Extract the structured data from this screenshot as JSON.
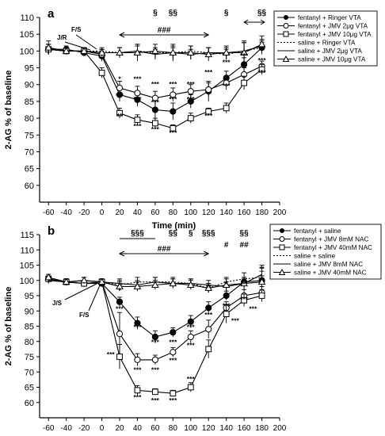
{
  "chart_data": [
    {
      "panel": "a",
      "type": "line",
      "xlabel": "Time (min)",
      "ylabel": "2-AG % of baseline",
      "xlim": [
        -70,
        200
      ],
      "ylim": [
        55,
        110
      ],
      "xticks": [
        -60,
        -40,
        -20,
        0,
        20,
        40,
        60,
        80,
        100,
        120,
        140,
        160,
        180,
        200
      ],
      "yticks": [
        60,
        65,
        70,
        75,
        80,
        85,
        90,
        95,
        100,
        105,
        110
      ],
      "x": [
        -60,
        -40,
        -20,
        0,
        20,
        40,
        60,
        80,
        100,
        120,
        140,
        160,
        180
      ],
      "series": [
        {
          "name": "fentanyl + Ringer VTA",
          "marker": "filled-circle",
          "line": "solid",
          "values": [
            100.5,
            100.5,
            99.5,
            98.5,
            87,
            85.5,
            82.5,
            82,
            85,
            88,
            92,
            96,
            101
          ],
          "err": [
            1.5,
            1,
            1,
            1.5,
            2,
            2,
            3,
            2.5,
            2,
            3,
            2,
            2,
            1.5
          ]
        },
        {
          "name": "fentanyl + JMV 2μg VTA",
          "marker": "open-circle",
          "line": "solid",
          "values": [
            100.5,
            100,
            100,
            99,
            89,
            87.5,
            86,
            87,
            88,
            88.5,
            90.5,
            93,
            95.5
          ],
          "err": [
            1.5,
            1,
            1,
            1.5,
            2,
            2,
            2,
            2,
            2,
            2,
            2,
            2,
            1.5
          ]
        },
        {
          "name": "fentanyl + JMV 10μg VTA",
          "marker": "open-square",
          "line": "solid",
          "values": [
            100.5,
            100,
            100,
            93.5,
            81.5,
            79.5,
            78.5,
            77,
            80,
            82,
            83,
            90.5,
            94.5
          ],
          "err": [
            1.5,
            1,
            1,
            1.5,
            1.5,
            1.5,
            1.5,
            1,
            1.5,
            1,
            1.5,
            2,
            1.5
          ]
        },
        {
          "name": "saline + Ringer VTA",
          "marker": "none",
          "line": "dotted",
          "values": [
            100.5,
            100,
            100,
            100,
            99.5,
            100,
            99.5,
            99.5,
            100,
            99.5,
            99,
            100,
            101
          ],
          "err": [
            1.5,
            1,
            1,
            1,
            1.5,
            2,
            1.5,
            2,
            1.5,
            1.5,
            1.5,
            3,
            2
          ]
        },
        {
          "name": "saline + JMV 2μg VTA",
          "marker": "none",
          "line": "solid",
          "values": [
            100.5,
            100,
            100,
            99.5,
            99.5,
            100,
            99,
            99.5,
            99,
            99.5,
            99.5,
            100,
            101.5
          ],
          "err": [
            1.5,
            1,
            1,
            1,
            1.5,
            1.5,
            1.5,
            1.5,
            1.5,
            1.5,
            1.5,
            2.5,
            2
          ]
        },
        {
          "name": "saline + JMV 10μg VTA",
          "marker": "open-triangle",
          "line": "solid",
          "values": [
            101,
            100,
            100,
            99.5,
            99.5,
            99.5,
            100,
            99.5,
            99.5,
            99,
            99.5,
            99.5,
            102
          ],
          "err": [
            2,
            1,
            1,
            1,
            1.5,
            2.5,
            2,
            2.5,
            2,
            2,
            2,
            3,
            2.5
          ]
        }
      ],
      "annotations": {
        "injection_labels": [
          "J/R",
          "F/S"
        ],
        "top_markers": [
          {
            "text": "§",
            "x": 60
          },
          {
            "text": "§§",
            "x": 80
          },
          {
            "text": "§",
            "x": 140
          },
          {
            "text": "§§",
            "x": 180
          }
        ],
        "range_label": "###",
        "asterisks": "***",
        "double_asterisks": "**"
      }
    },
    {
      "panel": "b",
      "type": "line",
      "xlabel": "Time (min)",
      "ylabel": "2-AG % of baseline",
      "xlim": [
        -70,
        200
      ],
      "ylim": [
        55,
        115
      ],
      "xticks": [
        -60,
        -40,
        -20,
        0,
        20,
        40,
        60,
        80,
        100,
        120,
        140,
        160,
        180,
        200
      ],
      "yticks": [
        60,
        65,
        70,
        75,
        80,
        85,
        90,
        95,
        100,
        105,
        110,
        115
      ],
      "x": [
        -60,
        -40,
        -20,
        0,
        20,
        40,
        60,
        80,
        100,
        120,
        140,
        160,
        180
      ],
      "series": [
        {
          "name": "fentanyl + saline",
          "marker": "filled-circle",
          "line": "solid",
          "values": [
            100.5,
            99.5,
            99,
            99,
            93,
            86,
            81.5,
            83,
            86.5,
            91,
            95,
            99.5,
            100
          ],
          "err": [
            1,
            1,
            1,
            1,
            1.5,
            2,
            2,
            1.5,
            2,
            2,
            1.5,
            1.5,
            1.5
          ]
        },
        {
          "name": "fentanyl + JMV 8mM NAC",
          "marker": "open-circle",
          "line": "solid",
          "values": [
            100.5,
            99.5,
            99,
            99.5,
            82.5,
            74,
            74,
            76.5,
            81.5,
            84,
            91,
            95,
            96
          ],
          "err": [
            1,
            1,
            1,
            1,
            7,
            2,
            1.5,
            1.5,
            2,
            3,
            2,
            2,
            2
          ]
        },
        {
          "name": "fentanyl + JMV 40mM NAC",
          "marker": "open-square",
          "line": "solid",
          "values": [
            100.5,
            99.5,
            99,
            99.5,
            75,
            64,
            63.5,
            63,
            65,
            77.5,
            89,
            93.5,
            95
          ],
          "err": [
            1,
            1,
            1,
            1,
            4,
            1.5,
            1,
            1,
            1.5,
            3,
            3,
            2,
            2
          ]
        },
        {
          "name": "saline + saline",
          "marker": "none",
          "line": "dotted",
          "values": [
            100,
            99.5,
            100,
            99.5,
            98.5,
            99.5,
            99.5,
            99.5,
            99,
            97.5,
            99.5,
            100.5,
            101
          ],
          "err": [
            1,
            1,
            1,
            1,
            1.5,
            1.5,
            1.5,
            1.5,
            1.5,
            1.5,
            1.5,
            2,
            2
          ]
        },
        {
          "name": "saline + JMV 8mM NAC",
          "marker": "none",
          "line": "solid",
          "values": [
            100,
            99.5,
            100,
            99.5,
            99,
            98.5,
            99.5,
            99,
            99,
            98.5,
            98,
            99,
            102
          ],
          "err": [
            1,
            1,
            1,
            1,
            1.5,
            1.5,
            1.5,
            1.5,
            1.5,
            1.5,
            1.5,
            1.5,
            3
          ]
        },
        {
          "name": "saline + JMV 40mM NAC",
          "marker": "open-triangle",
          "line": "solid",
          "values": [
            101,
            99.5,
            100,
            99.5,
            98,
            98,
            98.5,
            99,
            98.5,
            97.5,
            98.5,
            99,
            99.5
          ],
          "err": [
            1,
            1,
            1,
            1,
            1.5,
            1.5,
            1.5,
            1.5,
            1.5,
            1.5,
            2,
            2,
            2
          ]
        }
      ],
      "annotations": {
        "injection_labels": [
          "J/S",
          "F/S"
        ],
        "top_markers": [
          {
            "text": "§§§",
            "x": 40
          },
          {
            "text": "§§",
            "x": 80
          },
          {
            "text": "§",
            "x": 100
          },
          {
            "text": "§§§",
            "x": 120
          },
          {
            "text": "§§",
            "x": 160
          },
          {
            "text": "#",
            "x": 140
          },
          {
            "text": "##",
            "x": 160
          }
        ],
        "range_label": "###",
        "asterisks": "***",
        "double_asterisks": "**",
        "single_asterisk": "*"
      }
    }
  ]
}
